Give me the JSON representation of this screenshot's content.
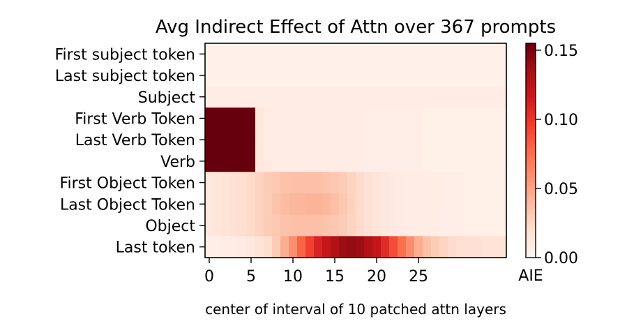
{
  "chart_data": {
    "type": "heatmap",
    "title": "Avg Indirect Effect of Attn over 367 prompts",
    "xlabel": "center of interval of 10 patched attn layers",
    "colorbar_label": "AIE",
    "rows": [
      "First subject token",
      "Last subject token",
      "Subject",
      "First Verb Token",
      "Last Verb Token",
      "Verb",
      "First Object Token",
      "Last Object Token",
      "Object",
      "Last token"
    ],
    "x": [
      0,
      1,
      2,
      3,
      4,
      5,
      6,
      7,
      8,
      9,
      10,
      11,
      12,
      13,
      14,
      15,
      16,
      17,
      18,
      19,
      20,
      21,
      22,
      23,
      24,
      25,
      26,
      27,
      28,
      29,
      30,
      31,
      32,
      33,
      34,
      35
    ],
    "x_ticks": [
      0,
      5,
      10,
      15,
      20,
      25
    ],
    "xlim": [
      -0.5,
      35.5
    ],
    "color_range": [
      0,
      0.155
    ],
    "colorbar_ticks": [
      "0.00",
      "0.05",
      "0.10",
      "0.15"
    ],
    "colormap": "Reds",
    "values": [
      [
        0.004,
        0.004,
        0.004,
        0.004,
        0.004,
        0.004,
        0.004,
        0.004,
        0.004,
        0.004,
        0.004,
        0.004,
        0.004,
        0.004,
        0.004,
        0.004,
        0.004,
        0.004,
        0.004,
        0.004,
        0.004,
        0.004,
        0.004,
        0.004,
        0.004,
        0.004,
        0.004,
        0.004,
        0.004,
        0.004,
        0.004,
        0.004,
        0.004,
        0.004,
        0.004,
        0.004
      ],
      [
        0.004,
        0.004,
        0.004,
        0.004,
        0.004,
        0.004,
        0.004,
        0.004,
        0.004,
        0.004,
        0.004,
        0.004,
        0.004,
        0.004,
        0.004,
        0.004,
        0.004,
        0.004,
        0.004,
        0.004,
        0.004,
        0.004,
        0.004,
        0.004,
        0.004,
        0.004,
        0.004,
        0.004,
        0.004,
        0.004,
        0.004,
        0.004,
        0.004,
        0.004,
        0.004,
        0.004
      ],
      [
        0.008,
        0.008,
        0.008,
        0.008,
        0.008,
        0.008,
        0.008,
        0.008,
        0.008,
        0.008,
        0.008,
        0.008,
        0.008,
        0.008,
        0.008,
        0.008,
        0.008,
        0.008,
        0.008,
        0.008,
        0.008,
        0.008,
        0.008,
        0.008,
        0.008,
        0.008,
        0.008,
        0.008,
        0.008,
        0.008,
        0.008,
        0.008,
        0.008,
        0.008,
        0.008,
        0.008
      ],
      [
        0.16,
        0.16,
        0.16,
        0.16,
        0.16,
        0.16,
        0.012,
        0.009,
        0.008,
        0.008,
        0.008,
        0.007,
        0.007,
        0.007,
        0.007,
        0.008,
        0.008,
        0.007,
        0.007,
        0.006,
        0.006,
        0.006,
        0.006,
        0.006,
        0.006,
        0.006,
        0.005,
        0.005,
        0.005,
        0.005,
        0.005,
        0.005,
        0.005,
        0.005,
        0.004,
        0.004
      ],
      [
        0.16,
        0.16,
        0.16,
        0.16,
        0.16,
        0.16,
        0.012,
        0.009,
        0.008,
        0.008,
        0.008,
        0.007,
        0.007,
        0.007,
        0.007,
        0.008,
        0.008,
        0.007,
        0.007,
        0.006,
        0.006,
        0.006,
        0.006,
        0.006,
        0.006,
        0.006,
        0.005,
        0.005,
        0.005,
        0.005,
        0.005,
        0.005,
        0.005,
        0.005,
        0.004,
        0.004
      ],
      [
        0.16,
        0.16,
        0.16,
        0.16,
        0.16,
        0.16,
        0.012,
        0.009,
        0.008,
        0.008,
        0.008,
        0.007,
        0.007,
        0.007,
        0.007,
        0.008,
        0.008,
        0.007,
        0.007,
        0.006,
        0.006,
        0.006,
        0.006,
        0.006,
        0.006,
        0.006,
        0.005,
        0.005,
        0.005,
        0.005,
        0.005,
        0.005,
        0.005,
        0.005,
        0.004,
        0.004
      ],
      [
        0.012,
        0.014,
        0.016,
        0.018,
        0.02,
        0.022,
        0.026,
        0.03,
        0.032,
        0.035,
        0.036,
        0.036,
        0.036,
        0.036,
        0.034,
        0.032,
        0.03,
        0.026,
        0.022,
        0.018,
        0.015,
        0.012,
        0.01,
        0.009,
        0.008,
        0.008,
        0.007,
        0.007,
        0.006,
        0.006,
        0.006,
        0.005,
        0.005,
        0.005,
        0.005,
        0.005
      ],
      [
        0.012,
        0.014,
        0.016,
        0.018,
        0.02,
        0.022,
        0.026,
        0.03,
        0.034,
        0.038,
        0.04,
        0.041,
        0.042,
        0.042,
        0.04,
        0.036,
        0.032,
        0.027,
        0.022,
        0.018,
        0.015,
        0.012,
        0.01,
        0.009,
        0.008,
        0.008,
        0.007,
        0.007,
        0.006,
        0.006,
        0.006,
        0.005,
        0.005,
        0.005,
        0.005,
        0.005
      ],
      [
        0.012,
        0.014,
        0.016,
        0.018,
        0.02,
        0.022,
        0.026,
        0.03,
        0.032,
        0.035,
        0.036,
        0.036,
        0.036,
        0.036,
        0.034,
        0.032,
        0.03,
        0.026,
        0.022,
        0.018,
        0.015,
        0.012,
        0.01,
        0.009,
        0.008,
        0.008,
        0.007,
        0.007,
        0.006,
        0.006,
        0.006,
        0.005,
        0.005,
        0.005,
        0.005,
        0.005
      ],
      [
        0.006,
        0.006,
        0.007,
        0.008,
        0.01,
        0.012,
        0.016,
        0.02,
        0.03,
        0.045,
        0.06,
        0.08,
        0.095,
        0.11,
        0.12,
        0.13,
        0.138,
        0.14,
        0.138,
        0.13,
        0.12,
        0.105,
        0.09,
        0.075,
        0.06,
        0.045,
        0.035,
        0.03,
        0.026,
        0.022,
        0.02,
        0.018,
        0.018,
        0.017,
        0.017,
        0.016
      ]
    ]
  }
}
